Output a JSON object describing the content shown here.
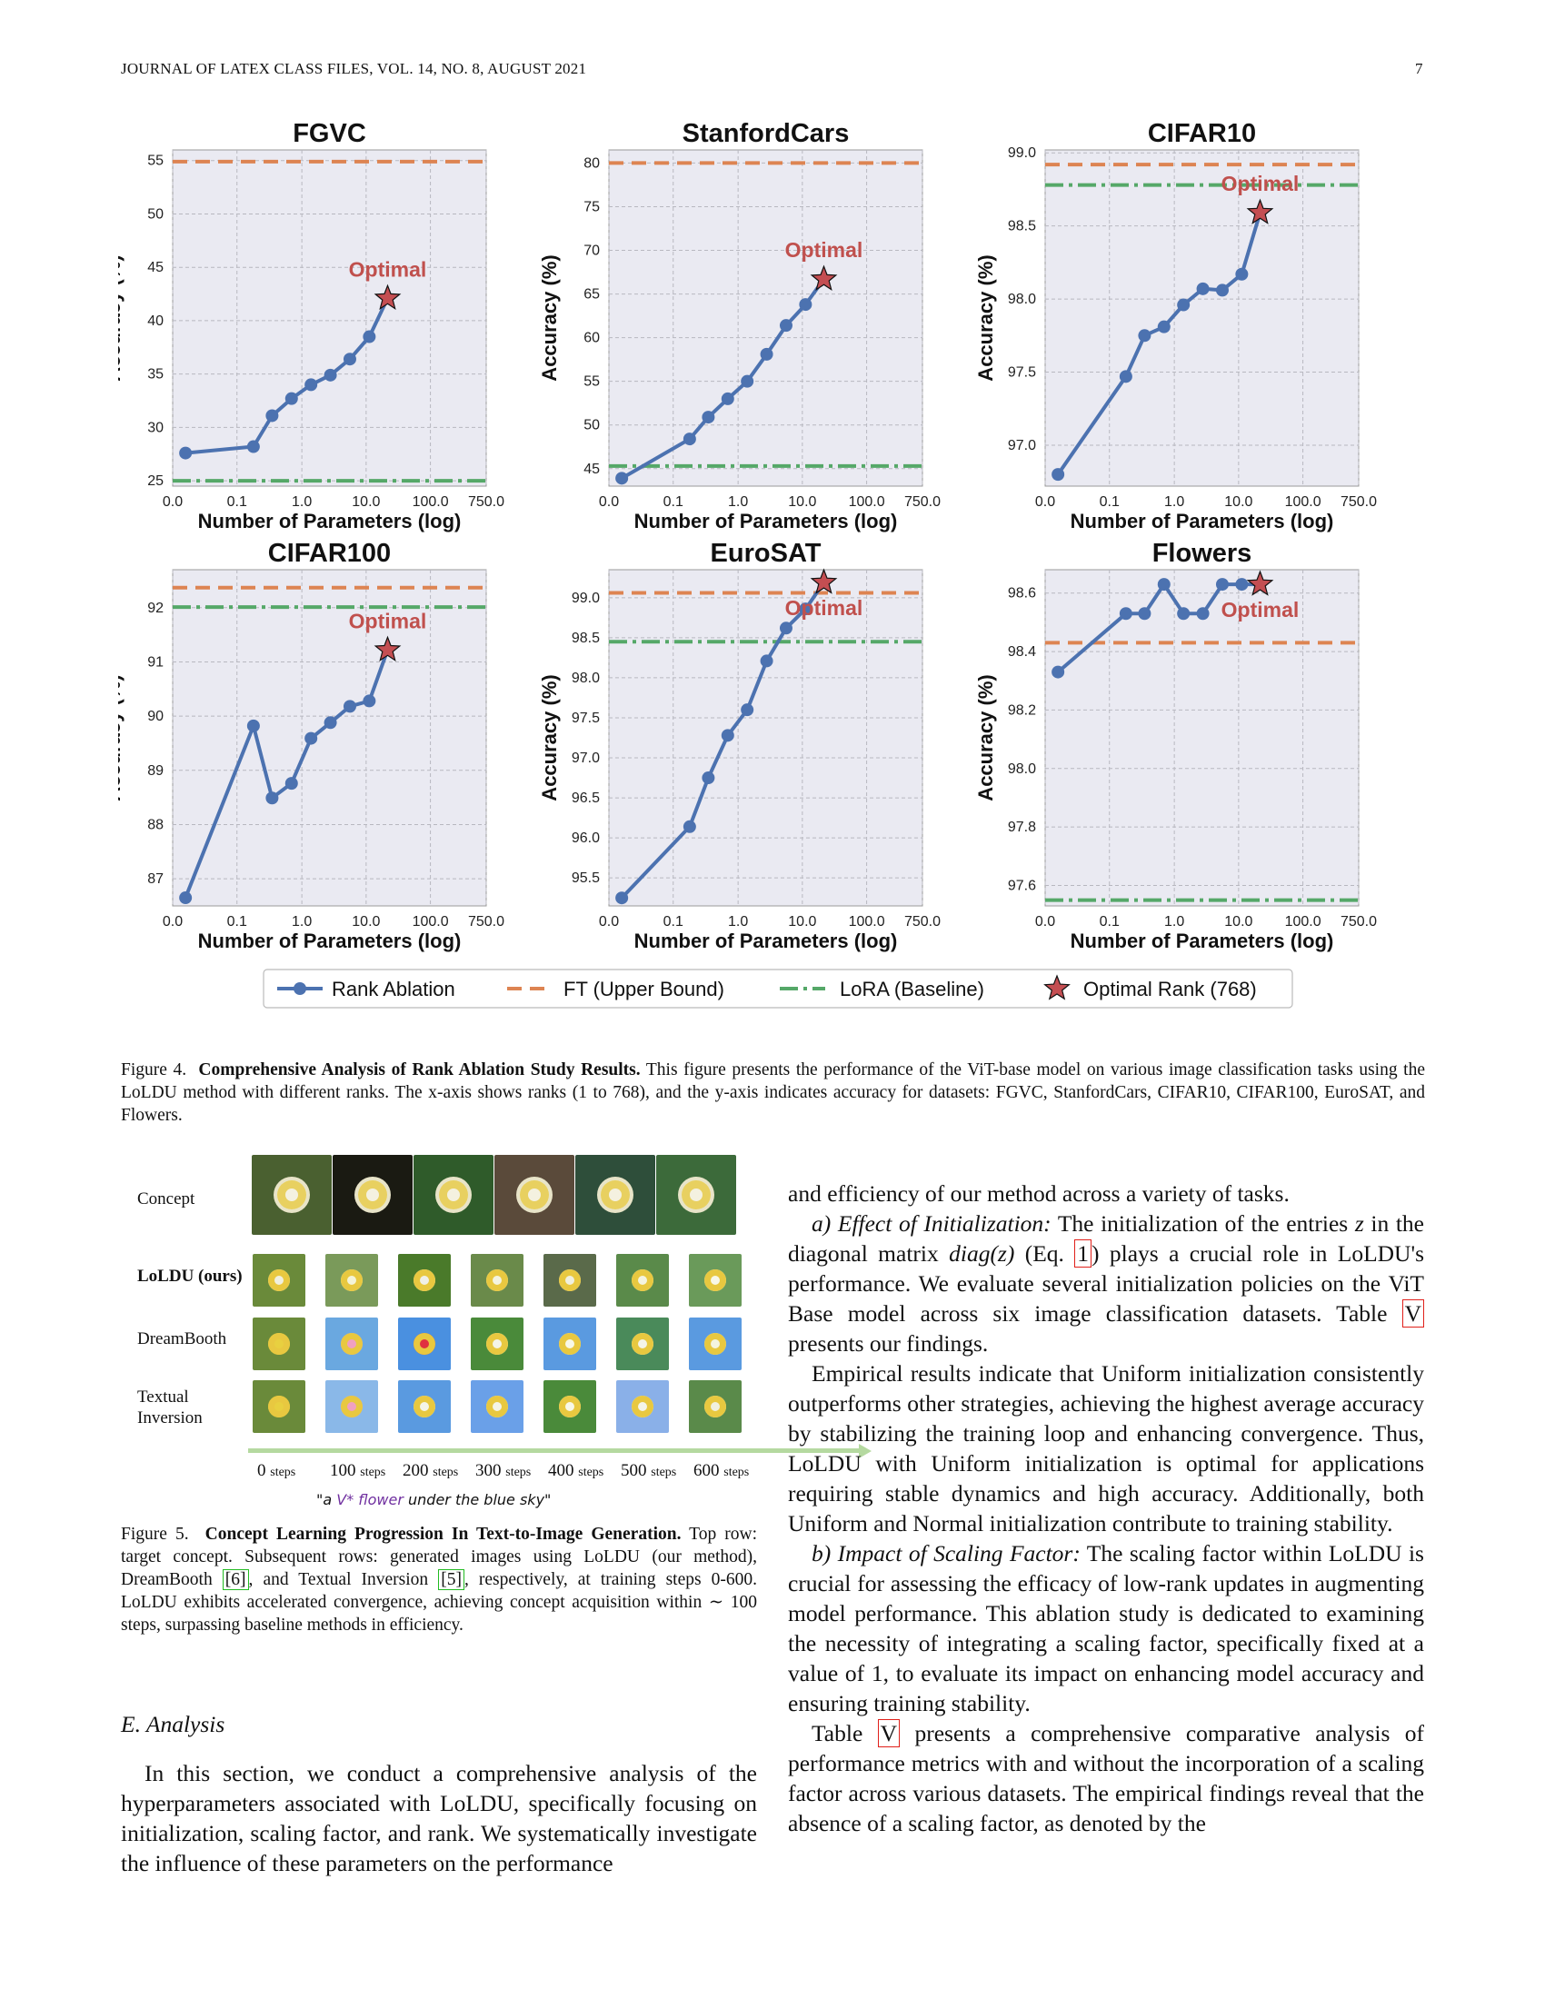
{
  "header": {
    "journal": "JOURNAL OF LATEX CLASS FILES, VOL. 14, NO. 8, AUGUST 2021",
    "page": "7"
  },
  "figure4": {
    "charts": [
      {
        "type": "line",
        "title": "FGVC",
        "xlabel": "Number of Parameters (log)",
        "ylabel": "Accuracy (%)",
        "x": [
          0.02,
          0.18,
          0.35,
          0.7,
          1.4,
          2.8,
          5.6,
          11.2,
          21.5
        ],
        "y": [
          27.6,
          28.2,
          31.1,
          32.7,
          34.0,
          34.9,
          36.4,
          38.5,
          42.1
        ],
        "ylim": [
          24.5,
          56.0
        ],
        "yticks": [
          25,
          30,
          35,
          40,
          45,
          50,
          55
        ],
        "ytick_labels": [
          "25",
          "30",
          "35",
          "40",
          "45",
          "50",
          "55"
        ],
        "ft": 54.9,
        "lora": 25.0,
        "optimal_x": 21.5,
        "optimal_y": 42.1,
        "optimal_label": "Optimal",
        "label_pos": "above"
      },
      {
        "type": "line",
        "title": "StanfordCars",
        "xlabel": "Number of Parameters (log)",
        "ylabel": "Accuracy (%)",
        "x": [
          0.02,
          0.18,
          0.35,
          0.7,
          1.4,
          2.8,
          5.6,
          11.2,
          21.5
        ],
        "y": [
          43.9,
          48.4,
          50.9,
          53.0,
          55.0,
          58.1,
          61.4,
          63.8,
          66.7
        ],
        "ylim": [
          43.0,
          81.5
        ],
        "yticks": [
          45,
          50,
          55,
          60,
          65,
          70,
          75,
          80
        ],
        "ytick_labels": [
          "45",
          "50",
          "55",
          "60",
          "65",
          "70",
          "75",
          "80"
        ],
        "ft": 80.0,
        "lora": 45.3,
        "optimal_x": 21.5,
        "optimal_y": 66.7,
        "optimal_label": "Optimal",
        "label_pos": "above"
      },
      {
        "type": "line",
        "title": "CIFAR10",
        "xlabel": "Number of Parameters (log)",
        "ylabel": "Accuracy (%)",
        "x": [
          0.02,
          0.18,
          0.35,
          0.7,
          1.4,
          2.8,
          5.6,
          11.2,
          21.5
        ],
        "y": [
          96.8,
          97.47,
          97.75,
          97.81,
          97.96,
          98.07,
          98.06,
          98.17,
          98.59
        ],
        "ylim": [
          96.72,
          99.02
        ],
        "yticks": [
          97.0,
          97.5,
          98.0,
          98.5,
          99.0
        ],
        "ytick_labels": [
          "97.0",
          "97.5",
          "98.0",
          "98.5",
          "99.0"
        ],
        "ft": 98.92,
        "lora": 98.78,
        "optimal_x": 21.5,
        "optimal_y": 98.59,
        "optimal_label": "Optimal",
        "label_pos": "above"
      },
      {
        "type": "line",
        "title": "CIFAR100",
        "xlabel": "Number of Parameters (log)",
        "ylabel": "Accuracy (%)",
        "x": [
          0.02,
          0.18,
          0.35,
          0.7,
          1.4,
          2.8,
          5.6,
          11.2,
          21.5
        ],
        "y": [
          86.65,
          89.82,
          88.49,
          88.76,
          89.59,
          89.88,
          90.18,
          90.28,
          91.22
        ],
        "ylim": [
          86.5,
          92.7
        ],
        "yticks": [
          87,
          88,
          89,
          90,
          91,
          92
        ],
        "ytick_labels": [
          "87",
          "88",
          "89",
          "90",
          "91",
          "92"
        ],
        "ft": 92.37,
        "lora": 92.01,
        "optimal_x": 21.5,
        "optimal_y": 91.22,
        "optimal_label": "Optimal",
        "label_pos": "above"
      },
      {
        "type": "line",
        "title": "EuroSAT",
        "xlabel": "Number of Parameters (log)",
        "ylabel": "Accuracy (%)",
        "x": [
          0.02,
          0.18,
          0.35,
          0.7,
          1.4,
          2.8,
          5.6,
          11.2,
          21.5
        ],
        "y": [
          95.25,
          96.14,
          96.75,
          97.28,
          97.6,
          98.21,
          98.62,
          98.86,
          99.19
        ],
        "ylim": [
          95.15,
          99.35
        ],
        "yticks": [
          95.5,
          96.0,
          96.5,
          97.0,
          97.5,
          98.0,
          98.5,
          99.0
        ],
        "ytick_labels": [
          "95.5",
          "96.0",
          "96.5",
          "97.0",
          "97.5",
          "98.0",
          "98.5",
          "99.0"
        ],
        "ft": 99.06,
        "lora": 98.45,
        "optimal_x": 21.5,
        "optimal_y": 99.19,
        "optimal_label": "Optimal",
        "label_pos": "below"
      },
      {
        "type": "line",
        "title": "Flowers",
        "xlabel": "Number of Parameters (log)",
        "ylabel": "Accuracy (%)",
        "x": [
          0.02,
          0.18,
          0.35,
          0.7,
          1.4,
          2.8,
          5.6,
          11.2,
          21.5
        ],
        "y": [
          98.33,
          98.53,
          98.53,
          98.63,
          98.53,
          98.53,
          98.63,
          98.63,
          98.63
        ],
        "ylim": [
          97.53,
          98.68
        ],
        "yticks": [
          97.6,
          97.8,
          98.0,
          98.2,
          98.4,
          98.6
        ],
        "ytick_labels": [
          "97.6",
          "97.8",
          "98.0",
          "98.2",
          "98.4",
          "98.6"
        ],
        "ft": 98.43,
        "lora": 97.55,
        "optimal_x": 21.5,
        "optimal_y": 98.63,
        "optimal_label": "Optimal",
        "label_pos": "below"
      }
    ],
    "x_ticks": [
      0.0,
      0.1,
      1.0,
      10.0,
      100.0,
      750.0
    ],
    "x_tick_labels": [
      "0.0",
      "0.1",
      "1.0",
      "10.0",
      "100.0",
      "750.0"
    ],
    "legend": [
      "Rank Ablation",
      "FT (Upper Bound)",
      "LoRA (Baseline)",
      "Optimal Rank (768)"
    ],
    "colors": {
      "line": "#4c72b0",
      "ft": "#dd8452",
      "lora": "#55a868",
      "star": "#c44e52",
      "plot_bg": "#eaeaf2"
    },
    "caption_label": "Figure 4.",
    "caption_bold": "Comprehensive Analysis of Rank Ablation Study Results.",
    "caption_text": "This figure presents the performance of the ViT-base model on various image classification tasks using the LoLDU method with different ranks. The x-axis shows ranks (1 to 768), and the y-axis indicates accuracy for datasets: FGVC, StanfordCars, CIFAR10, CIFAR100, EuroSAT, and Flowers."
  },
  "figure5": {
    "row_labels": [
      "Concept",
      "LoLDU (ours)",
      "DreamBooth",
      "Textual",
      "Inversion"
    ],
    "steps": [
      "0",
      "100",
      "200",
      "300",
      "400",
      "500",
      "600"
    ],
    "steps_unit": "steps",
    "prompt_open": "\"a ",
    "prompt_token": "V* flower",
    "prompt_close": " under the blue sky\"",
    "caption_label": "Figure 5.",
    "caption_bold": "Concept Learning Progression In Text-to-Image Generation.",
    "caption_a": "Top row: target concept. Subsequent rows: generated images using LoLDU (our method), DreamBooth ",
    "ref1": "[6]",
    "caption_b": ", and Textual Inversion ",
    "ref2": "[5]",
    "caption_c": ", respectively, at training steps 0-600. LoLDU exhibits accelerated convergence, achieving concept acquisition within ∼ 100 steps, surpassing baseline methods in efficiency."
  },
  "section": {
    "heading": "E. Analysis",
    "left_para": "In this section, we conduct a comprehensive analysis of the hyperparameters associated with LoLDU, specifically focusing on initialization, scaling factor, and rank. We systematically investigate the influence of these parameters on the performance",
    "right_p1": "and efficiency of our method across a variety of tasks.",
    "right_p2_head": "a) Effect of Initialization:",
    "right_p2_a": " The initialization of the entries ",
    "right_p2_z": "z",
    "right_p2_b": " in the diagonal matrix ",
    "right_p2_diag": "diag(z)",
    "right_p2_c": " (Eq. ",
    "right_p2_ref": "1",
    "right_p2_d": ") plays a crucial role in LoLDU's performance. We evaluate several initialization policies on the ViT Base model across six image classification datasets. Table ",
    "right_p2_tab": "V",
    "right_p2_e": " presents our findings.",
    "right_p3": "Empirical results indicate that Uniform initialization consistently outperforms other strategies, achieving the highest average accuracy by stabilizing the training loop and enhancing convergence. Thus, LoLDU with Uniform initialization is optimal for applications requiring stable dynamics and high accuracy. Additionally, both Uniform and Normal initialization contribute to training stability.",
    "right_p4_head": "b) Impact of Scaling Factor:",
    "right_p4": " The scaling factor within LoLDU is crucial for assessing the efficacy of low-rank updates in augmenting model performance. This ablation study is dedicated to examining the necessity of integrating a scaling factor, specifically fixed at a value of 1, to evaluate its impact on enhancing model accuracy and ensuring training stability.",
    "right_p5_a": "Table ",
    "right_p5_tab": "V",
    "right_p5_b": " presents a comprehensive comparative analysis of performance metrics with and without the incorporation of a scaling factor across various datasets. The empirical findings reveal that the absence of a scaling factor, as denoted by the"
  }
}
